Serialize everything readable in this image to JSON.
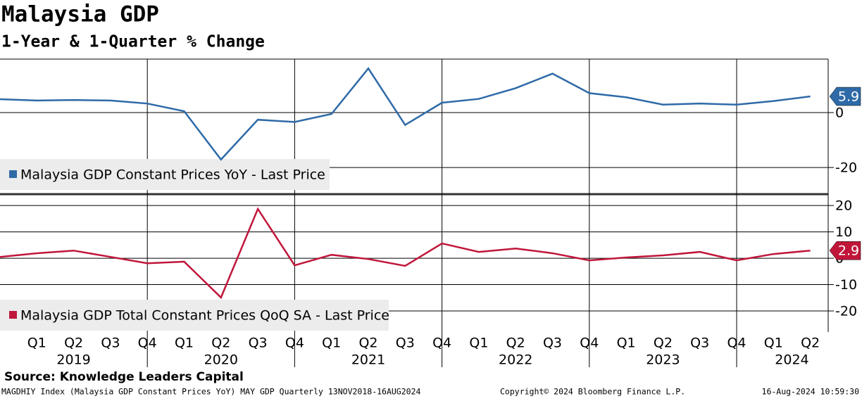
{
  "chart_data": {
    "type": "line",
    "title": "Malaysia GDP",
    "subtitle": "1-Year & 1-Quarter % Change",
    "categories": [
      null,
      "Q1",
      "Q2",
      "Q3",
      "Q4",
      "Q1",
      "Q2",
      "Q3",
      "Q4",
      "Q1",
      "Q2",
      "Q3",
      "Q4",
      "Q1",
      "Q2",
      "Q3",
      "Q4",
      "Q1",
      "Q2",
      "Q3",
      "Q4",
      "Q1",
      "Q2"
    ],
    "years": [
      "2019",
      "2020",
      "2021",
      "2022",
      "2023",
      "2024"
    ],
    "panels": [
      {
        "ylim": [
          -28.7,
          19.5
        ],
        "yticks": [
          0,
          -20
        ],
        "series": [
          {
            "name": "Malaysia GDP Constant Prices YoY - Last Price",
            "color": "#2e6aa8",
            "values": [
              4.9,
              4.4,
              4.6,
              4.4,
              3.3,
              0.5,
              -17.1,
              -2.6,
              -3.4,
              -0.5,
              16.1,
              -4.5,
              3.6,
              5.0,
              8.9,
              14.2,
              7.1,
              5.6,
              2.9,
              3.3,
              2.9,
              4.2,
              5.9
            ]
          }
        ]
      },
      {
        "ylim": [
          -28,
          22.7
        ],
        "yticks": [
          20,
          10,
          0,
          -10,
          -20
        ],
        "series": [
          {
            "name": "Malaysia GDP Total Constant Prices QoQ SA - Last Price",
            "color": "#c0163a",
            "values": [
              0.5,
              1.9,
              2.9,
              0.5,
              -1.9,
              -1.3,
              -14.9,
              18.7,
              -2.7,
              1.3,
              -0.3,
              -2.9,
              5.6,
              2.4,
              3.7,
              1.9,
              -0.8,
              0.3,
              1.1,
              2.4,
              -0.8,
              1.6,
              2.9
            ]
          }
        ]
      }
    ],
    "source": "Source: Knowledge Leaders Capital",
    "footer_left": "MAGDHIY Index (Malaysia GDP Constant Prices YoY) MAY GDP  Quarterly 13NOV2018-16AUG2024",
    "footer_center": "Copyright© 2024 Bloomberg Finance L.P.",
    "footer_right": "16-Aug-2024 10:59:30"
  }
}
